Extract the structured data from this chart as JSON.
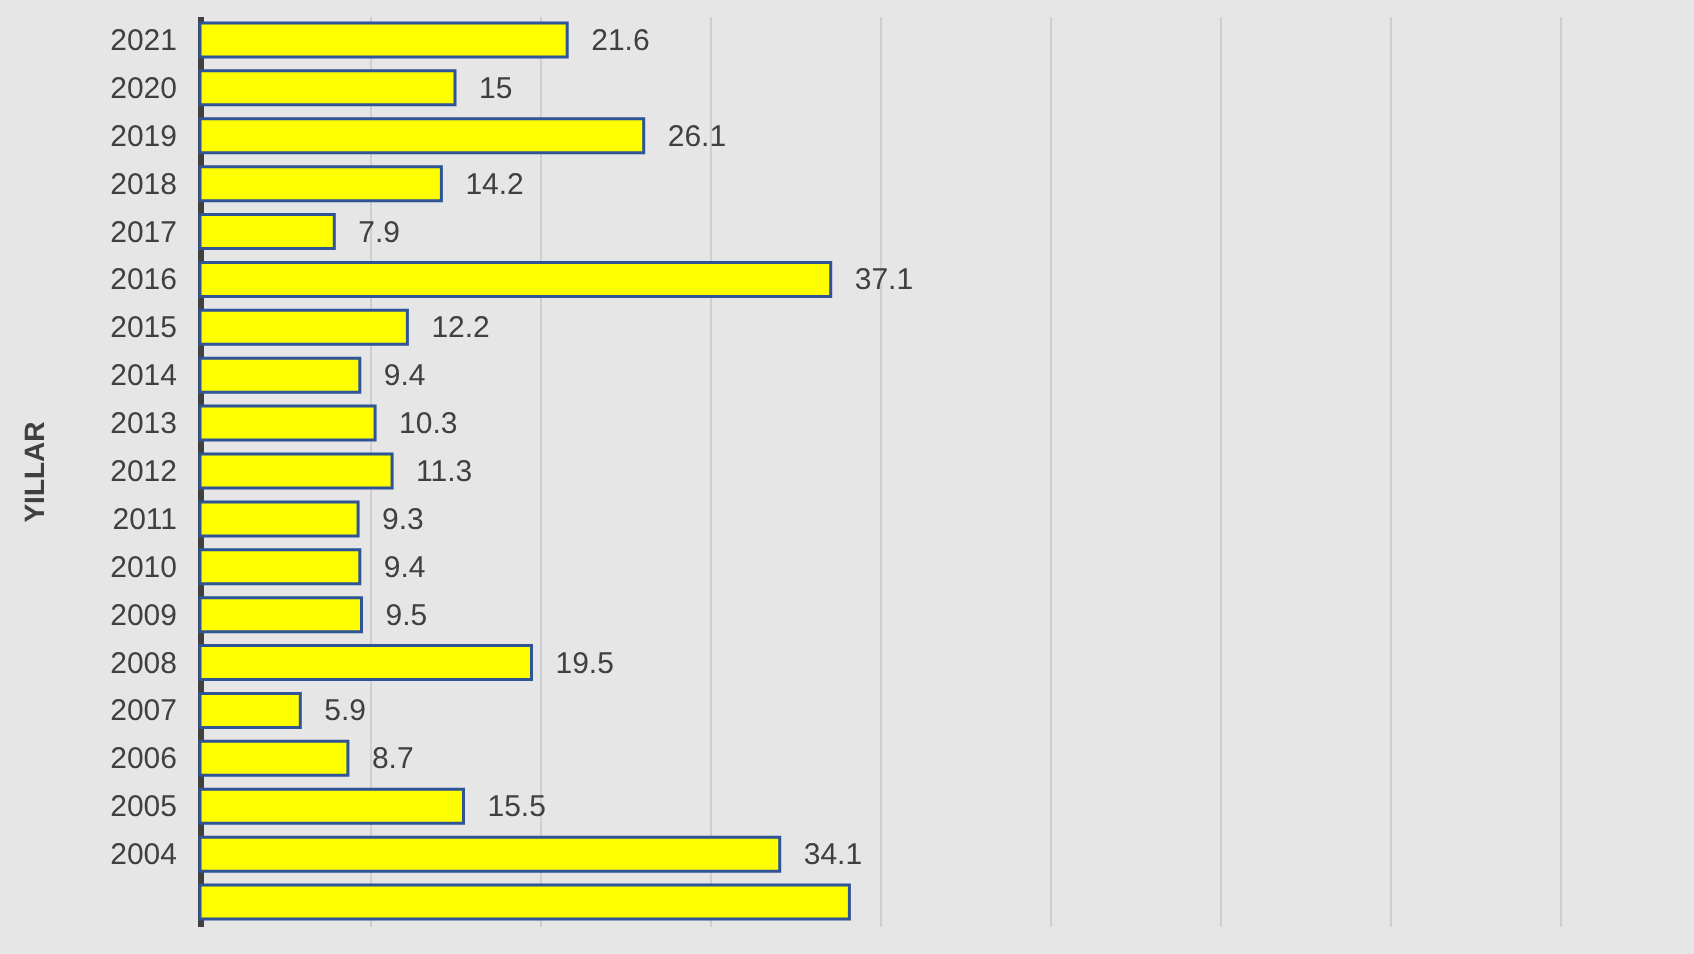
{
  "chart_data": {
    "type": "bar",
    "orientation": "horizontal",
    "ylabel": "YILLAR",
    "categories": [
      "2021",
      "2020",
      "2019",
      "2018",
      "2017",
      "2016",
      "2015",
      "2014",
      "2013",
      "2012",
      "2011",
      "2010",
      "2009",
      "2008",
      "2007",
      "2006",
      "2005",
      "2004",
      null
    ],
    "values": [
      21.6,
      15,
      26.1,
      14.2,
      7.9,
      37.1,
      12.2,
      9.4,
      10.3,
      11.3,
      9.3,
      9.4,
      9.5,
      19.5,
      5.9,
      8.7,
      15.5,
      34.1,
      38.2
    ],
    "value_labels": [
      "21.6",
      "15",
      "26.1",
      "14.2",
      "7.9",
      "37.1",
      "12.2",
      "9.4",
      "10.3",
      "11.3",
      "9.3",
      "9.4",
      "9.5",
      "19.5",
      "5.9",
      "8.7",
      "15.5",
      "34.1",
      null
    ],
    "color": "#ffff00",
    "xlim": [
      0,
      80
    ],
    "xticks": [
      {
        "value": 0,
        "label": null
      },
      {
        "value": 10,
        "label": null
      },
      {
        "value": 20,
        "label": null
      },
      {
        "value": 30,
        "label": null
      },
      {
        "value": 40,
        "label": null
      },
      {
        "value": 50,
        "label": null
      },
      {
        "value": 60,
        "label": null
      },
      {
        "value": 70,
        "label": null
      },
      {
        "value": 80,
        "label": null
      }
    ],
    "grid": "x",
    "tick_labels": "y"
  }
}
